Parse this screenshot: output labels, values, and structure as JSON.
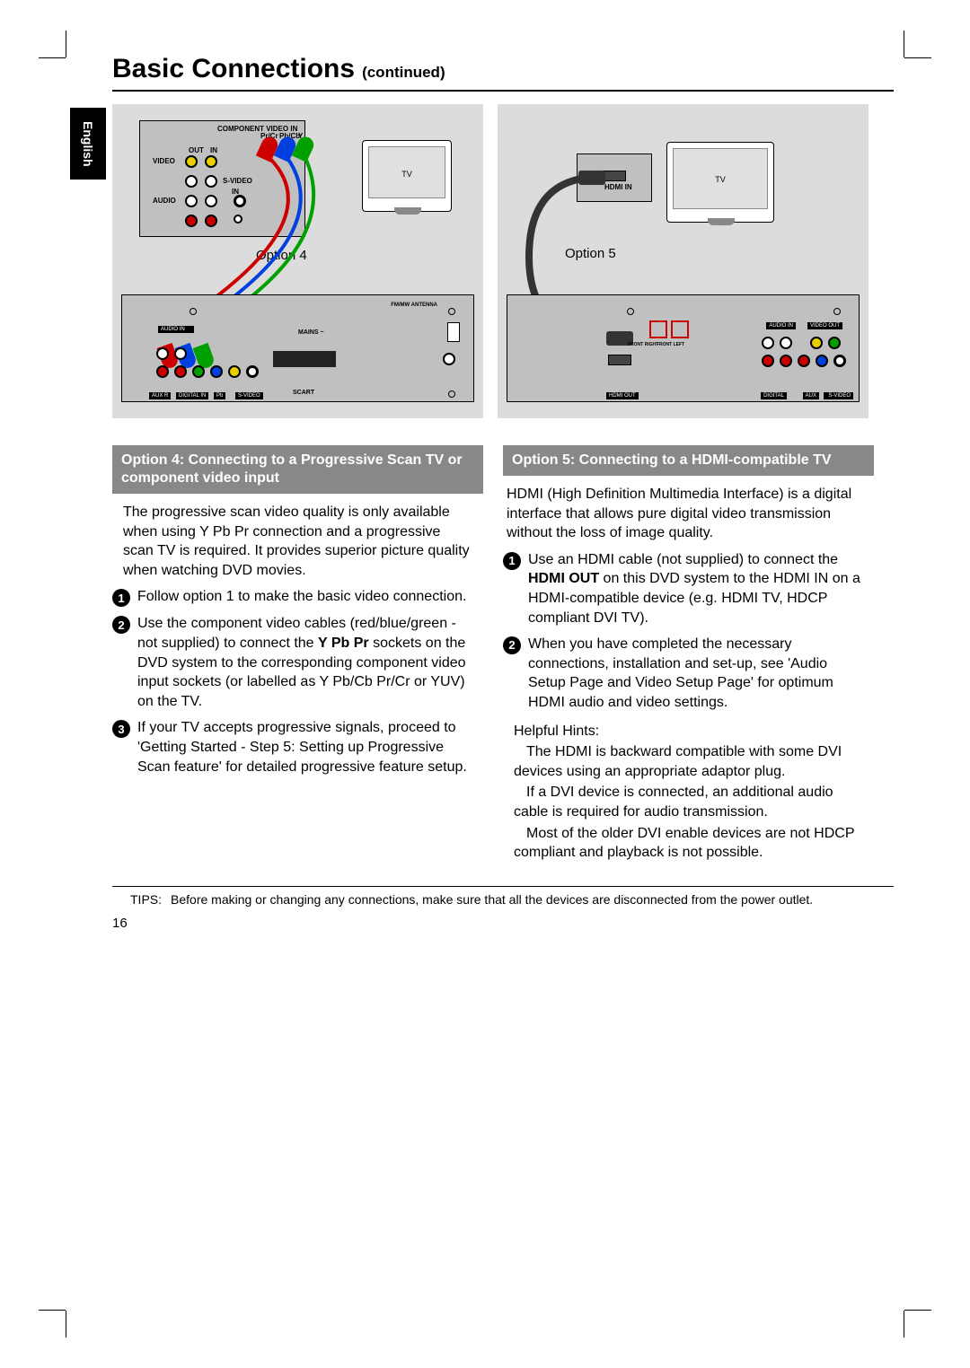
{
  "page": {
    "title_main": "Basic Connections",
    "title_sub": "(continued)",
    "language_tab": "English",
    "page_number": "16",
    "rule_color": "#000000",
    "background": "#ffffff"
  },
  "diagrams": {
    "box_bg": "#dcdcdc",
    "panel_bg": "#c0c0c0",
    "left": {
      "option_label": "Option 4",
      "tv_label": "TV",
      "top_labels": {
        "component": "COMPONENT VIDEO IN",
        "prcr": "Pr/Cr",
        "pbcb": "Pb/Cb",
        "y": "Y",
        "out": "OUT",
        "in": "IN",
        "video": "VIDEO",
        "svideo": "S-VIDEO",
        "audio": "AUDIO",
        "aud_in": "IN"
      },
      "bottom_labels": {
        "antenna": "FM/MW ANTENNA",
        "mains": "MAINS ~",
        "scart": "SCART"
      },
      "jack_colors": {
        "red": "#cc0000",
        "green": "#00a000",
        "blue": "#0040e0",
        "yellow": "#e8d000",
        "white": "#ffffff"
      }
    },
    "right": {
      "option_label": "Option 5",
      "tv_label": "TV",
      "hdmi_in_label": "HDMI IN",
      "hdmi_out_label": "HDMI OUT",
      "front_label": "FRONT RIGHT",
      "front2_label": "FRONT LEFT",
      "audio_in": "AUDIO IN",
      "video_out": "VIDEO OUT"
    }
  },
  "left_section": {
    "heading": "Option 4: Connecting to a Progressive Scan TV or component video input",
    "intro": "The progressive scan video quality is only available when using Y Pb Pr connection and a progressive scan TV is required. It provides superior picture quality when watching DVD movies.",
    "steps": [
      "Follow option 1 to make the basic video connection.",
      "Use the component video cables (red/blue/green - not supplied) to connect the <b>Y Pb Pr</b> sockets on the DVD system to the corresponding component video input sockets (or labelled as Y Pb/Cb Pr/Cr or YUV) on the TV.",
      "If your TV accepts progressive signals, proceed to 'Getting Started - Step 5: Setting up Progressive Scan feature' for detailed progressive feature setup."
    ]
  },
  "right_section": {
    "heading": "Option 5: Connecting to a HDMI-compatible TV",
    "intro": "HDMI (High Definition Multimedia Interface) is a digital interface that allows pure digital video transmission without the loss of image quality.",
    "steps": [
      "Use an HDMI cable (not supplied) to connect the <b>HDMI OUT</b> on this DVD system to the HDMI IN on a HDMI-compatible device (e.g. HDMI TV, HDCP compliant DVI TV).",
      "When you have completed the necessary connections, installation and set-up, see 'Audio Setup Page and Video Setup Page' for optimum HDMI audio and video settings."
    ],
    "hints_title": "Helpful Hints:",
    "hints": [
      "The HDMI is backward compatible with some DVI devices using an appropriate adaptor plug.",
      "If a DVI device is connected, an additional audio cable is required for audio transmission.",
      "Most of the older DVI enable devices are not HDCP compliant and playback is not possible."
    ]
  },
  "tips": {
    "label": "TIPS:",
    "text": "Before making or changing any connections, make sure that all the devices are disconnected from the power outlet."
  },
  "style": {
    "subhead_bg": "#888888",
    "subhead_color": "#ffffff",
    "body_fontsize": 16,
    "title_fontsize": 30
  }
}
